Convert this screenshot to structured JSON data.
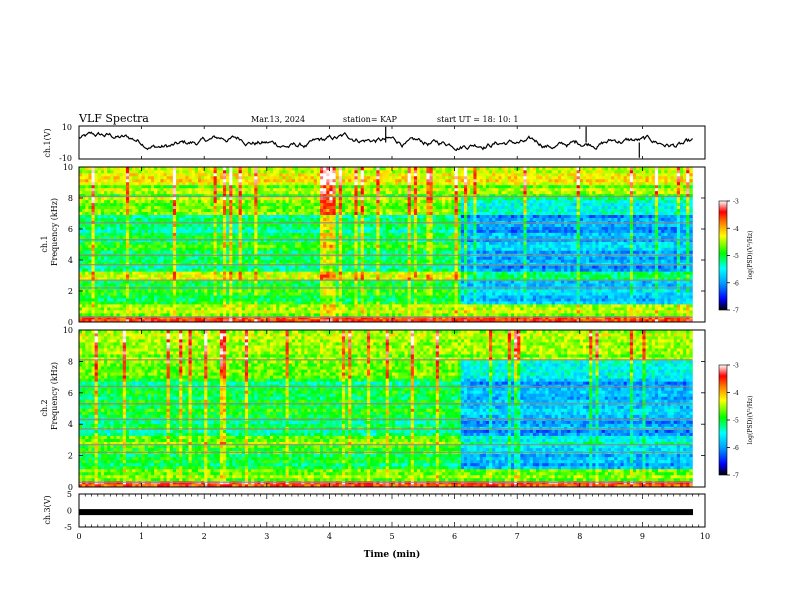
{
  "header": {
    "title": "VLF Spectra",
    "date": "Mar.13, 2024",
    "station": "station= KAP",
    "start_ut": "start  UT =   18: 10: 1"
  },
  "chart_data": [
    {
      "name": "ch1-waveform",
      "type": "line",
      "ylabel": "ch.1(V)",
      "ylim": [
        -10,
        10
      ],
      "y_ticks": [
        "10",
        "-10"
      ],
      "xlim": [
        0,
        10
      ]
    },
    {
      "name": "ch1-spectrogram",
      "type": "heatmap",
      "ylabel_line1": "ch.1",
      "ylabel_line2": "Frequency (kHz)",
      "ylim": [
        0,
        10
      ],
      "y_ticks": [
        "0",
        "2",
        "4",
        "6",
        "8",
        "10"
      ],
      "xlim": [
        0,
        10
      ],
      "data_extent_min": 9.8,
      "colorbar": {
        "label": "log(PSD)(V²/Hz)",
        "range": [
          -7,
          -3
        ],
        "ticks": [
          "-3",
          "-4",
          "-5",
          "-6",
          "-7"
        ],
        "colors": [
          "#000000",
          "#0000ff",
          "#00a0ff",
          "#00ffff",
          "#00ff00",
          "#ffff00",
          "#ff8000",
          "#ff0000",
          "#ffffff"
        ]
      }
    },
    {
      "name": "ch2-spectrogram",
      "type": "heatmap",
      "ylabel_line1": "ch.2",
      "ylabel_line2": "Frequency (kHz)",
      "ylim": [
        0,
        10
      ],
      "y_ticks": [
        "0",
        "2",
        "4",
        "6",
        "8",
        "10"
      ],
      "xlim": [
        0,
        10
      ],
      "data_extent_min": 9.8,
      "colorbar": {
        "label": "log(PSD)(V²/Hz)",
        "range": [
          -7,
          -3
        ],
        "ticks": [
          "-3",
          "-4",
          "-5",
          "-6",
          "-7"
        ],
        "colors": [
          "#000000",
          "#0000ff",
          "#00a0ff",
          "#00ffff",
          "#00ff00",
          "#ffff00",
          "#ff8000",
          "#ff0000",
          "#ffffff"
        ]
      }
    },
    {
      "name": "ch3-waveform",
      "type": "line",
      "ylabel": "ch.3(V)",
      "ylim": [
        -5,
        5
      ],
      "y_ticks": [
        "5",
        "0",
        "-5"
      ],
      "xlim": [
        0,
        10
      ],
      "x_ticks": [
        "0",
        "1",
        "2",
        "3",
        "4",
        "5",
        "6",
        "7",
        "8",
        "9",
        "10"
      ],
      "xlabel": "Time (min)",
      "level_v": -0.5
    }
  ]
}
